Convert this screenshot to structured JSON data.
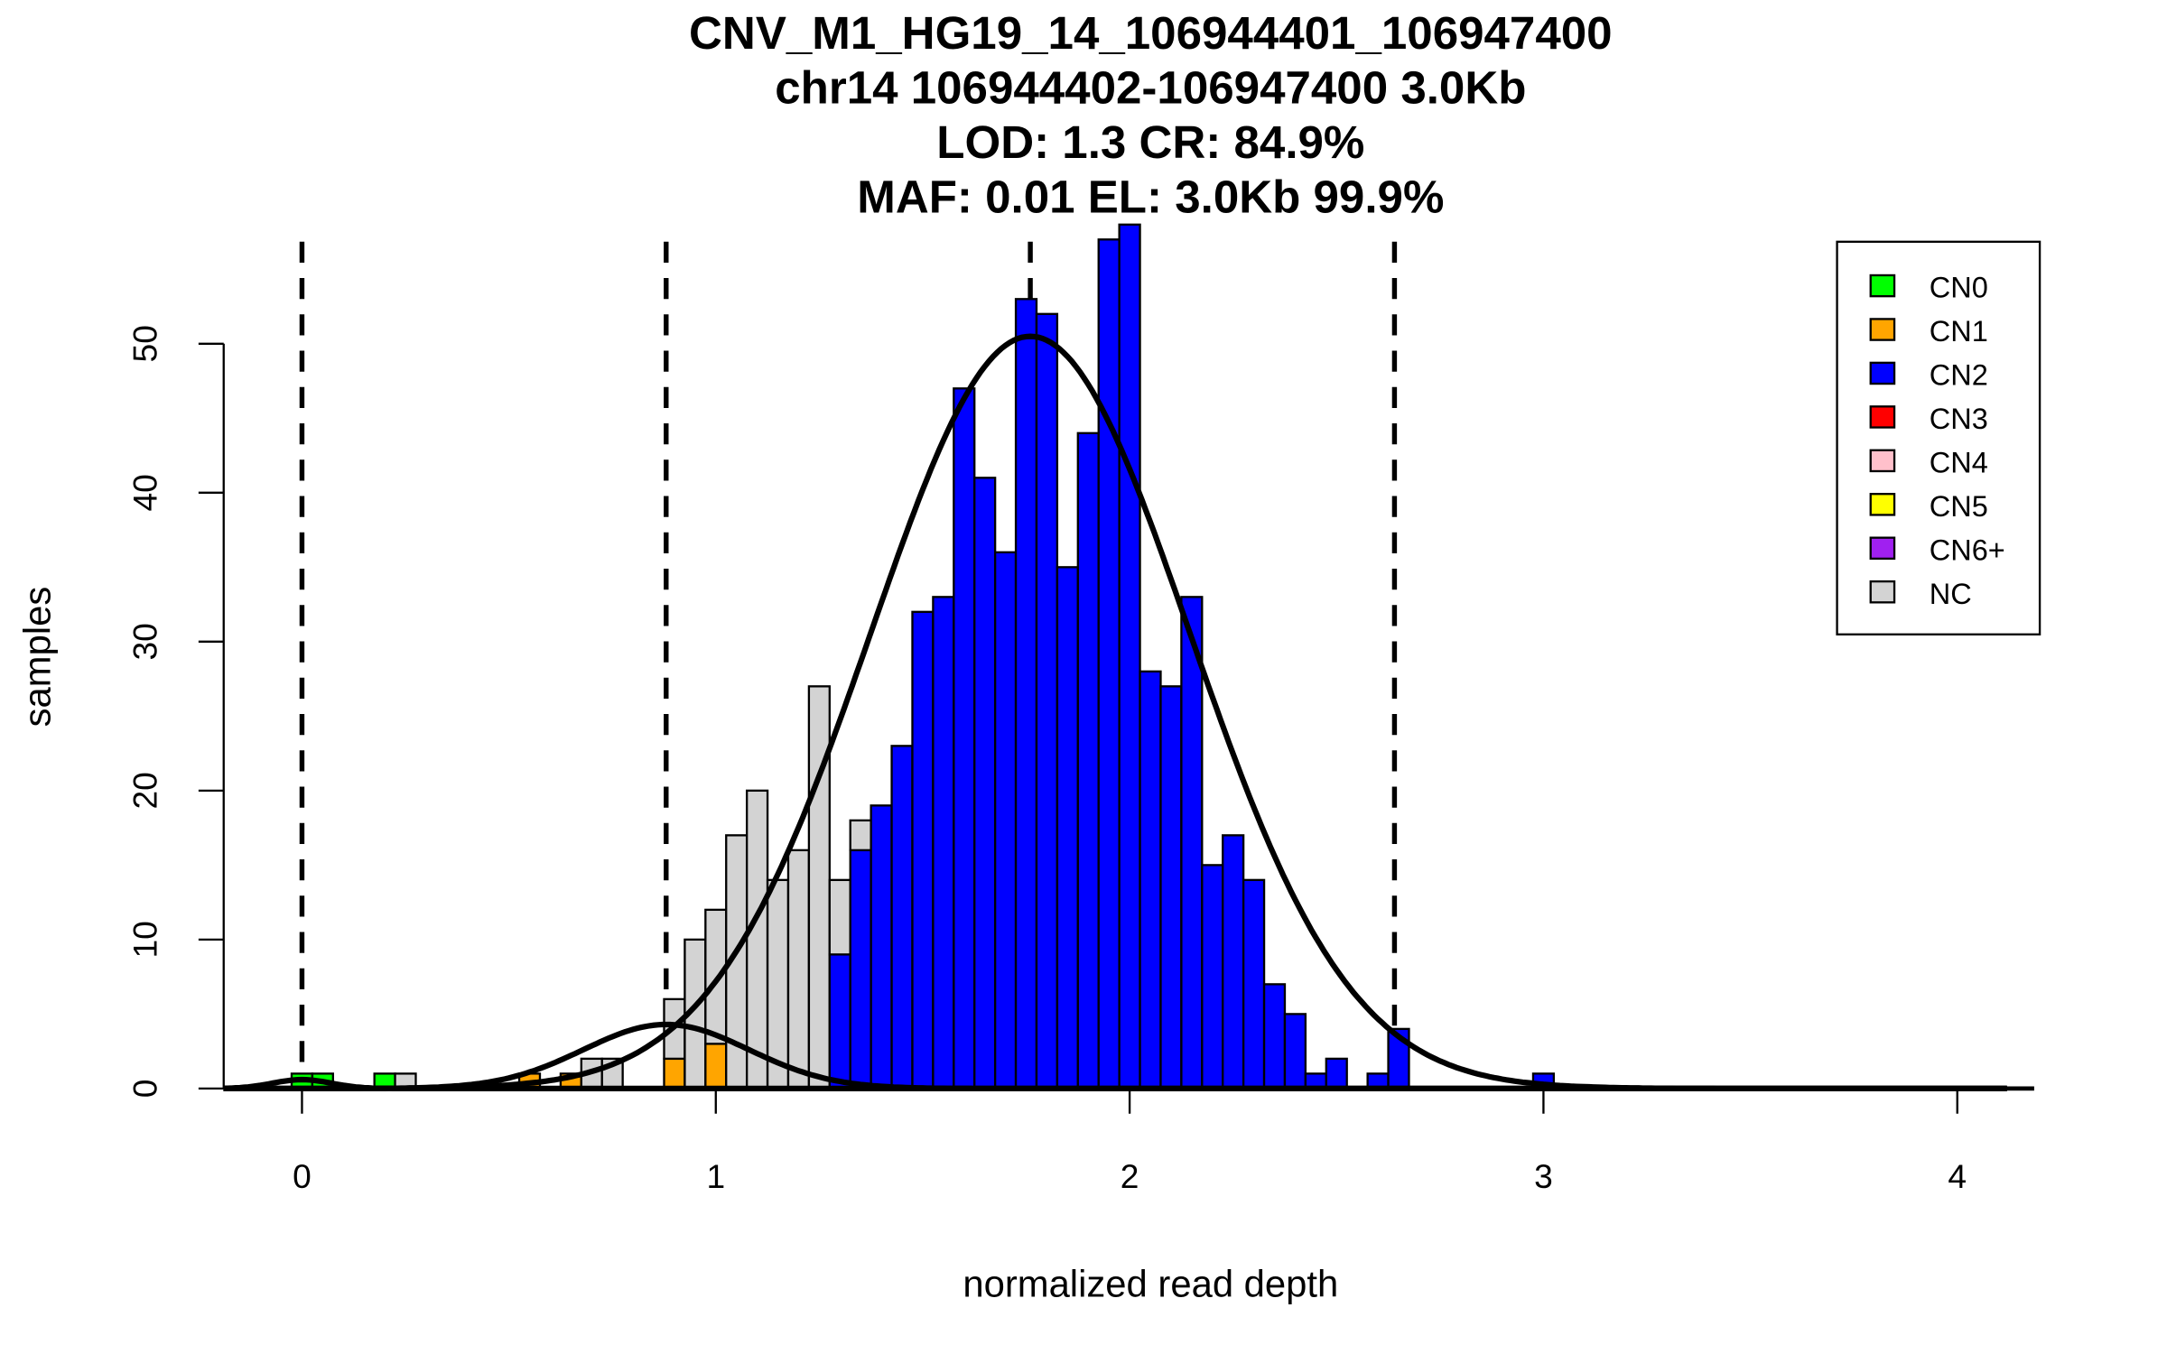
{
  "chart_data": {
    "type": "bar",
    "title_lines": [
      "CNV_M1_HG19_14_106944401_106947400",
      "chr14 106944402-106947400 3.0Kb",
      "LOD: 1.3 CR: 84.9%",
      "MAF: 0.01 EL: 3.0Kb 99.9%"
    ],
    "xlabel": "normalized read depth",
    "ylabel": "samples",
    "xlim": [
      -0.19,
      4.19
    ],
    "ylim": [
      0,
      58
    ],
    "x_ticks": [
      "0",
      "1",
      "2",
      "3",
      "4"
    ],
    "y_ticks": [
      "0",
      "10",
      "20",
      "30",
      "40",
      "50"
    ],
    "bin_width": 0.05,
    "stack_order": [
      "CN0",
      "CN1",
      "CN2",
      "CN3",
      "CN4",
      "CN5",
      "CN6+",
      "NC"
    ],
    "colors": {
      "CN0": "#00ff00",
      "CN1": "#ffa500",
      "CN2": "#0000ff",
      "CN3": "#ff0000",
      "CN4": "#ffc0cb",
      "CN5": "#ffff00",
      "CN6+": "#a020f0",
      "NC": "#d3d3d3"
    },
    "bins": [
      {
        "x": 0.0,
        "CN0": 1
      },
      {
        "x": 0.05,
        "CN0": 1
      },
      {
        "x": 0.2,
        "CN0": 1
      },
      {
        "x": 0.25,
        "NC": 1
      },
      {
        "x": 0.55,
        "CN1": 1
      },
      {
        "x": 0.65,
        "CN1": 1
      },
      {
        "x": 0.7,
        "NC": 2
      },
      {
        "x": 0.75,
        "NC": 2
      },
      {
        "x": 0.9,
        "CN1": 2,
        "NC": 4
      },
      {
        "x": 0.95,
        "NC": 10
      },
      {
        "x": 1.0,
        "CN1": 3,
        "NC": 9
      },
      {
        "x": 1.05,
        "NC": 17
      },
      {
        "x": 1.1,
        "NC": 20
      },
      {
        "x": 1.15,
        "NC": 14
      },
      {
        "x": 1.2,
        "NC": 16
      },
      {
        "x": 1.25,
        "NC": 27
      },
      {
        "x": 1.3,
        "CN2": 9,
        "NC": 5
      },
      {
        "x": 1.35,
        "CN2": 16,
        "NC": 2
      },
      {
        "x": 1.4,
        "CN2": 19
      },
      {
        "x": 1.45,
        "CN2": 23
      },
      {
        "x": 1.5,
        "CN2": 32
      },
      {
        "x": 1.55,
        "CN2": 33
      },
      {
        "x": 1.6,
        "CN2": 47
      },
      {
        "x": 1.65,
        "CN2": 41
      },
      {
        "x": 1.7,
        "CN2": 36
      },
      {
        "x": 1.75,
        "CN2": 53
      },
      {
        "x": 1.8,
        "CN2": 52
      },
      {
        "x": 1.85,
        "CN2": 35
      },
      {
        "x": 1.9,
        "CN2": 44
      },
      {
        "x": 1.95,
        "CN2": 57
      },
      {
        "x": 2.0,
        "CN2": 58
      },
      {
        "x": 2.05,
        "CN2": 28
      },
      {
        "x": 2.1,
        "CN2": 27
      },
      {
        "x": 2.15,
        "CN2": 33
      },
      {
        "x": 2.2,
        "CN2": 15
      },
      {
        "x": 2.25,
        "CN2": 17
      },
      {
        "x": 2.3,
        "CN2": 14
      },
      {
        "x": 2.35,
        "CN2": 7
      },
      {
        "x": 2.4,
        "CN2": 5
      },
      {
        "x": 2.45,
        "CN2": 1
      },
      {
        "x": 2.5,
        "CN2": 2
      },
      {
        "x": 2.6,
        "CN2": 1
      },
      {
        "x": 2.65,
        "CN2": 4
      },
      {
        "x": 3.0,
        "CN2": 1
      }
    ],
    "fitted_curves": [
      {
        "name": "CN0",
        "mean": 0.0,
        "sd": 0.07,
        "peak": 0.6
      },
      {
        "name": "CN1",
        "mean": 0.88,
        "sd": 0.2,
        "peak": 4.3
      },
      {
        "name": "CN2",
        "mean": 1.76,
        "sd": 0.385,
        "peak": 50.5
      }
    ],
    "dashed_lines_x": [
      0.0,
      0.88,
      1.76,
      2.64
    ],
    "legend": {
      "placement": "top-right",
      "entries": [
        "CN0",
        "CN1",
        "CN2",
        "CN3",
        "CN4",
        "CN5",
        "CN6+",
        "NC"
      ]
    }
  }
}
